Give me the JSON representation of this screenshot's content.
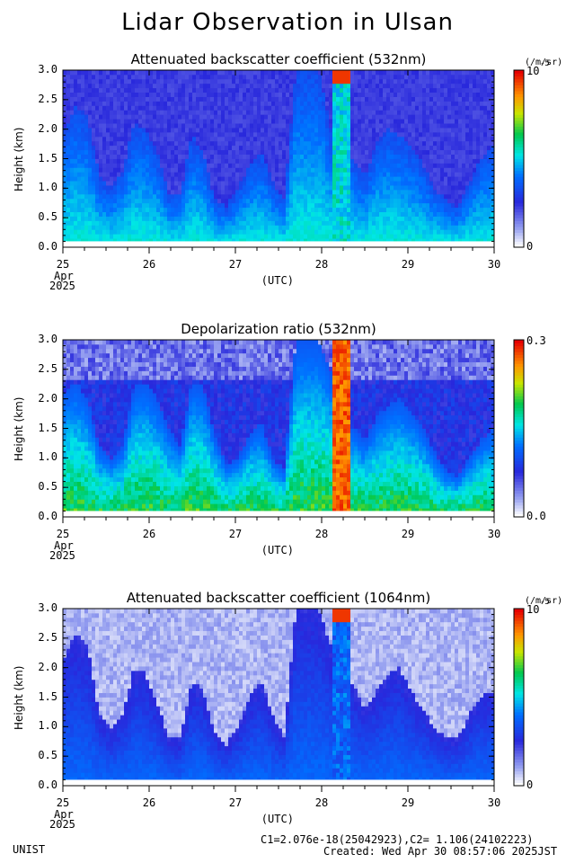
{
  "page": {
    "title": "Lidar Observation in Ulsan",
    "institution": "UNIST",
    "calib": "C1=2.076e-18(25042923),C2= 1.106(24102223)",
    "created": "Created: Wed Apr 30 08:57:06 2025JST"
  },
  "axes": {
    "ylabel": "Height (km)",
    "xunit": "(UTC)",
    "xticks": [
      "25",
      "26",
      "27",
      "28",
      "29",
      "30"
    ],
    "month": "Apr",
    "year": "2025",
    "yticks": [
      "0.0",
      "0.5",
      "1.0",
      "1.5",
      "2.0",
      "2.5",
      "3.0"
    ]
  },
  "panels": [
    {
      "title": "Attenuated backscatter coefficient (532nm)",
      "cb_top": "10",
      "cb_exp": "-5",
      "cb_bottom": "0",
      "cb_unit": "(/m/sr)"
    },
    {
      "title": "Depolarization ratio (532nm)",
      "cb_top": "0.3",
      "cb_exp": "",
      "cb_bottom": "0.0",
      "cb_unit": ""
    },
    {
      "title": "Attenuated backscatter coefficient (1064nm)",
      "cb_top": "10",
      "cb_exp": "-5",
      "cb_bottom": "0",
      "cb_unit": "(/m/sr)"
    }
  ],
  "chart_data": [
    {
      "type": "heatmap",
      "title": "Attenuated backscatter coefficient (532nm)",
      "xlabel": "(UTC)",
      "ylabel": "Height (km)",
      "xlim": [
        25,
        30
      ],
      "ylim": [
        0,
        3.0
      ],
      "colorbar": {
        "min": 0,
        "max": "1e-5",
        "unit": "/m/sr"
      },
      "profile_max_height_km": [
        2.0,
        2.4,
        2.2,
        1.2,
        1.0,
        1.3,
        2.1,
        2.0,
        1.6,
        0.9,
        0.9,
        1.9,
        1.6,
        0.8,
        0.7,
        1.0,
        1.4,
        1.6,
        1.1,
        0.8,
        3.0,
        3.0,
        3.0,
        2.0,
        1.6,
        1.5,
        1.2,
        1.8,
        2.0,
        1.9,
        1.7,
        1.4,
        1.0,
        0.8,
        0.7,
        1.1,
        1.5,
        1.7
      ]
    },
    {
      "type": "heatmap",
      "title": "Depolarization ratio (532nm)",
      "xlabel": "(UTC)",
      "ylabel": "Height (km)",
      "xlim": [
        25,
        30
      ],
      "ylim": [
        0,
        3.0
      ],
      "colorbar": {
        "min": 0.0,
        "max": 0.3
      },
      "profile_max_height_km": [
        2.1,
        2.3,
        2.0,
        1.2,
        1.0,
        1.2,
        2.2,
        2.3,
        2.0,
        1.5,
        1.2,
        2.3,
        2.2,
        1.4,
        0.9,
        1.0,
        1.4,
        1.6,
        1.0,
        0.8,
        3.0,
        3.0,
        3.0,
        2.5,
        1.7,
        1.5,
        1.3,
        1.7,
        1.9,
        2.0,
        1.8,
        1.5,
        1.1,
        0.8,
        0.7,
        1.0,
        1.3,
        1.5
      ]
    },
    {
      "type": "heatmap",
      "title": "Attenuated backscatter coefficient (1064nm)",
      "xlabel": "(UTC)",
      "ylabel": "Height (km)",
      "xlim": [
        25,
        30
      ],
      "ylim": [
        0,
        3.0
      ],
      "colorbar": {
        "min": 0,
        "max": "1e-5",
        "unit": "/m/sr"
      },
      "profile_max_height_km": [
        2.2,
        2.6,
        2.4,
        1.2,
        1.0,
        1.2,
        2.0,
        1.9,
        1.4,
        0.8,
        0.8,
        1.8,
        1.6,
        0.9,
        0.7,
        1.0,
        1.5,
        1.8,
        1.2,
        0.8,
        3.0,
        3.0,
        3.0,
        2.4,
        1.8,
        1.7,
        1.3,
        1.6,
        1.9,
        2.0,
        1.6,
        1.3,
        1.0,
        0.8,
        0.8,
        1.2,
        1.5,
        1.6
      ]
    }
  ]
}
